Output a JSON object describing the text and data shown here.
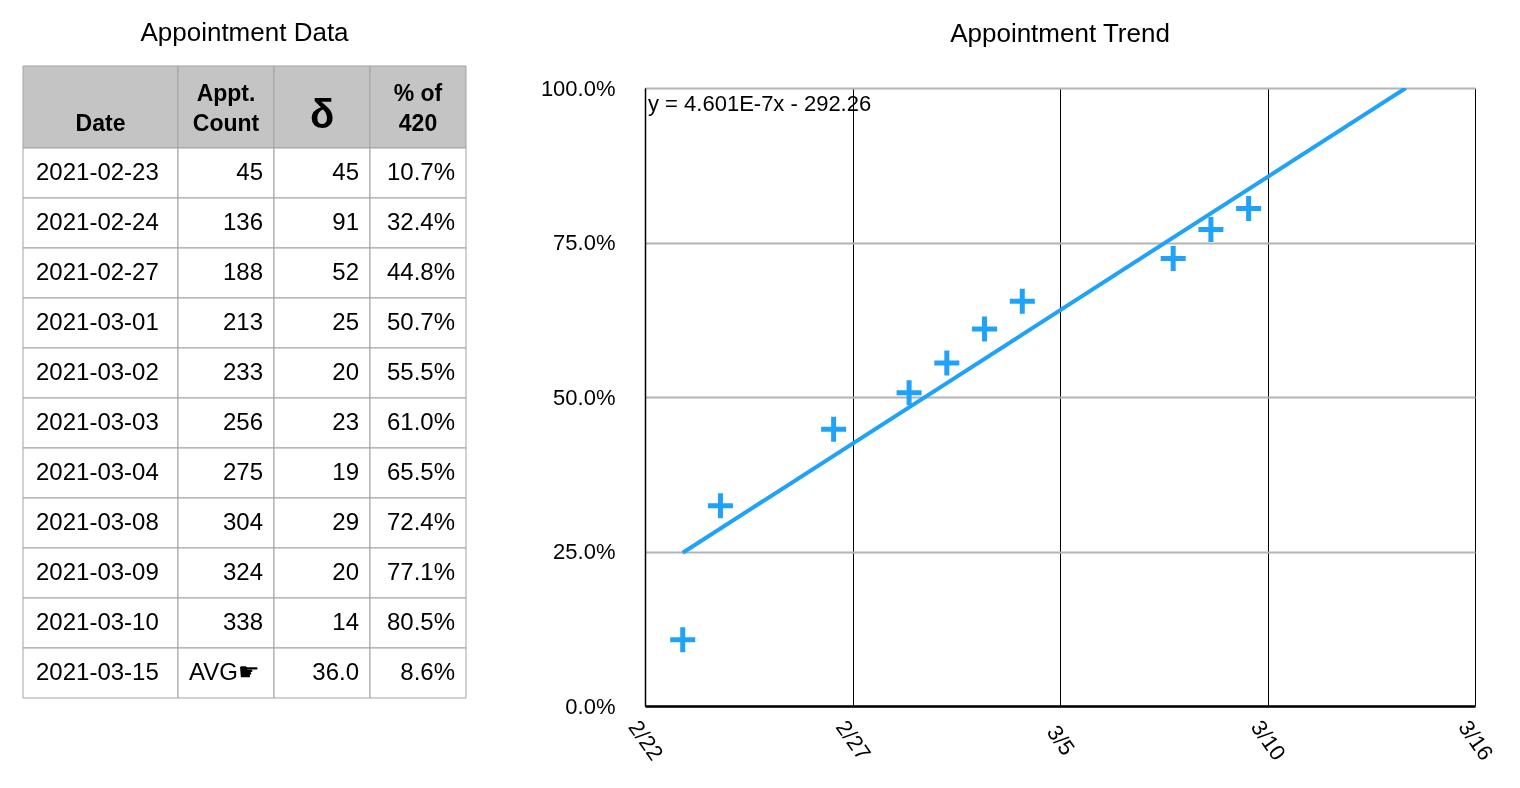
{
  "chart_data": [
    {
      "type": "other",
      "title": "Appointment Data",
      "categories": [
        "Date",
        "Appt. Count",
        "δ",
        "% of 420"
      ],
      "cell_labels": [
        [
          "2021-02-23",
          "45",
          "45",
          "10.7%"
        ],
        [
          "2021-02-24",
          "136",
          "91",
          "32.4%"
        ],
        [
          "2021-02-27",
          "188",
          "52",
          "44.8%"
        ],
        [
          "2021-03-01",
          "213",
          "25",
          "50.7%"
        ],
        [
          "2021-03-02",
          "233",
          "20",
          "55.5%"
        ],
        [
          "2021-03-03",
          "256",
          "23",
          "61.0%"
        ],
        [
          "2021-03-04",
          "275",
          "19",
          "65.5%"
        ],
        [
          "2021-03-08",
          "304",
          "29",
          "72.4%"
        ],
        [
          "2021-03-09",
          "324",
          "20",
          "77.1%"
        ],
        [
          "2021-03-10",
          "338",
          "14",
          "80.5%"
        ],
        [
          "2021-03-15",
          "AVG☛",
          "36.0",
          "8.6%"
        ]
      ]
    },
    {
      "type": "scatter",
      "title": "Appointment Trend",
      "x": [
        "2021-02-23",
        "2021-02-24",
        "2021-02-27",
        "2021-03-01",
        "2021-03-02",
        "2021-03-03",
        "2021-03-04",
        "2021-03-08",
        "2021-03-09",
        "2021-03-10"
      ],
      "series": [
        {
          "color": "#1fa2f7",
          "values": [
            10.7,
            32.4,
            44.8,
            50.7,
            55.5,
            61.0,
            65.5,
            72.4,
            77.1,
            80.5
          ]
        },
        {
          "type": "line",
          "marker": "none",
          "color": "#1fa2f7",
          "x": [
            "2021-02-23",
            "2021-03-14T04:00"
          ],
          "values": [
            24.8,
            100
          ]
        }
      ],
      "xlim": [
        "2021-02-22",
        "2021-03-16"
      ],
      "xticks": [
        {
          "value": "2021-02-22",
          "label": "2/22"
        },
        {
          "value": "2021-02-27T12:00",
          "label": "2/27"
        },
        {
          "value": "2021-03-05",
          "label": "3/5"
        },
        {
          "value": "2021-03-10T12:00",
          "label": "3/10"
        },
        {
          "value": "2021-03-16",
          "label": "3/16"
        }
      ],
      "ylim": [
        0,
        100
      ],
      "yticks": [
        {
          "value": 0,
          "label": "0.0%"
        },
        {
          "value": 25,
          "label": "25.0%"
        },
        {
          "value": 50,
          "label": "50.0%"
        },
        {
          "value": 75,
          "label": "75.0%"
        },
        {
          "value": 100,
          "label": "100.0%"
        }
      ],
      "grid": true,
      "marker": "cross",
      "annotations": [
        "y = 4.601E-7x - 292.26"
      ]
    }
  ]
}
